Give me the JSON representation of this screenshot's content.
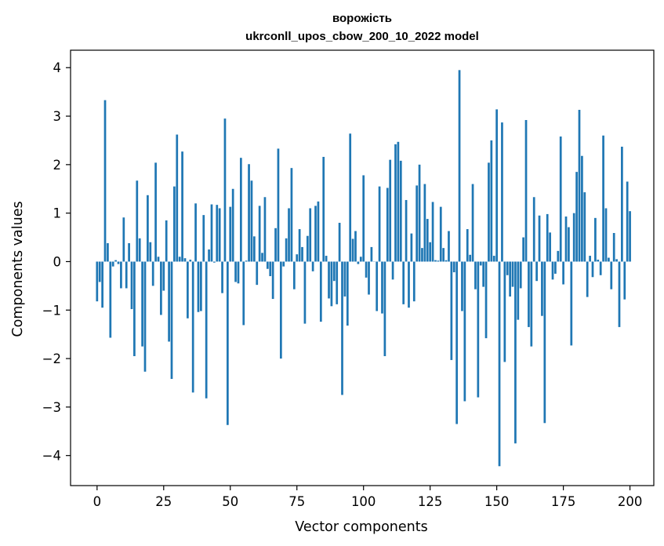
{
  "chart_data": {
    "type": "bar",
    "title": "ворожість",
    "subtitle": "ukrconll_upos_cbow_200_10_2022 model",
    "xlabel": "Vector components",
    "ylabel": "Components values",
    "xlim": [
      -9.95,
      208.95
    ],
    "ylim": [
      -4.62,
      4.36
    ],
    "xticks": [
      0,
      25,
      50,
      75,
      100,
      125,
      150,
      175,
      200
    ],
    "yticks": [
      -4,
      -3,
      -2,
      -1,
      0,
      1,
      2,
      3,
      4
    ],
    "grid": false,
    "bar_color": "#1f77b4",
    "values": [
      -0.82,
      -0.42,
      -0.95,
      3.33,
      0.38,
      -1.57,
      -0.1,
      0.03,
      -0.05,
      -0.55,
      0.91,
      -0.55,
      0.38,
      -0.98,
      -1.95,
      1.67,
      0.48,
      -1.75,
      -2.27,
      1.37,
      0.4,
      -0.5,
      2.04,
      0.1,
      -1.1,
      -0.6,
      0.85,
      -1.65,
      -2.42,
      1.55,
      2.62,
      0.1,
      2.27,
      0.07,
      -1.17,
      0.04,
      -2.7,
      1.2,
      -1.04,
      -1.02,
      0.96,
      -2.82,
      0.25,
      1.18,
      -0.02,
      1.17,
      1.1,
      -0.65,
      2.95,
      -3.37,
      1.13,
      1.5,
      -0.42,
      -0.45,
      2.14,
      -1.31,
      0.02,
      2.01,
      1.67,
      0.52,
      -0.48,
      1.15,
      0.18,
      1.33,
      -0.15,
      -0.3,
      -0.77,
      0.69,
      2.33,
      -2.0,
      -0.1,
      0.48,
      1.1,
      1.93,
      -0.57,
      0.15,
      0.67,
      0.3,
      -1.28,
      0.53,
      1.1,
      -0.2,
      1.15,
      1.24,
      -1.24,
      2.16,
      0.12,
      -0.76,
      -0.92,
      -0.4,
      -0.88,
      0.8,
      -2.75,
      -0.72,
      -1.32,
      2.64,
      0.47,
      0.63,
      -0.05,
      0.1,
      1.78,
      -0.33,
      -0.68,
      0.3,
      0.0,
      -1.02,
      1.55,
      -1.07,
      -1.95,
      1.52,
      2.1,
      -0.37,
      2.42,
      2.47,
      2.08,
      -0.88,
      1.27,
      -0.95,
      0.58,
      -0.82,
      1.57,
      2.0,
      0.28,
      1.6,
      0.88,
      0.4,
      1.23,
      0.03,
      0.02,
      1.13,
      0.28,
      0.03,
      0.63,
      -2.03,
      -0.22,
      -3.35,
      3.95,
      -1.02,
      -2.88,
      0.67,
      0.14,
      1.6,
      -0.57,
      -2.8,
      -0.08,
      -0.52,
      -1.58,
      2.04,
      2.5,
      0.12,
      3.14,
      -4.22,
      2.87,
      -2.07,
      -0.28,
      -0.72,
      -0.52,
      -3.75,
      -1.2,
      -0.55,
      0.5,
      2.92,
      -1.35,
      -1.75,
      1.33,
      -0.4,
      0.95,
      -1.12,
      -3.33,
      0.98,
      0.6,
      -0.37,
      -0.25,
      0.22,
      2.58,
      -0.47,
      0.93,
      0.71,
      -1.73,
      1.0,
      1.85,
      3.13,
      2.18,
      1.43,
      -0.73,
      0.12,
      -0.32,
      0.9,
      0.04,
      -0.28,
      2.6,
      1.1,
      0.08,
      -0.57,
      0.59,
      0.05,
      -1.35,
      2.37,
      -0.78,
      1.65,
      1.04
    ]
  }
}
